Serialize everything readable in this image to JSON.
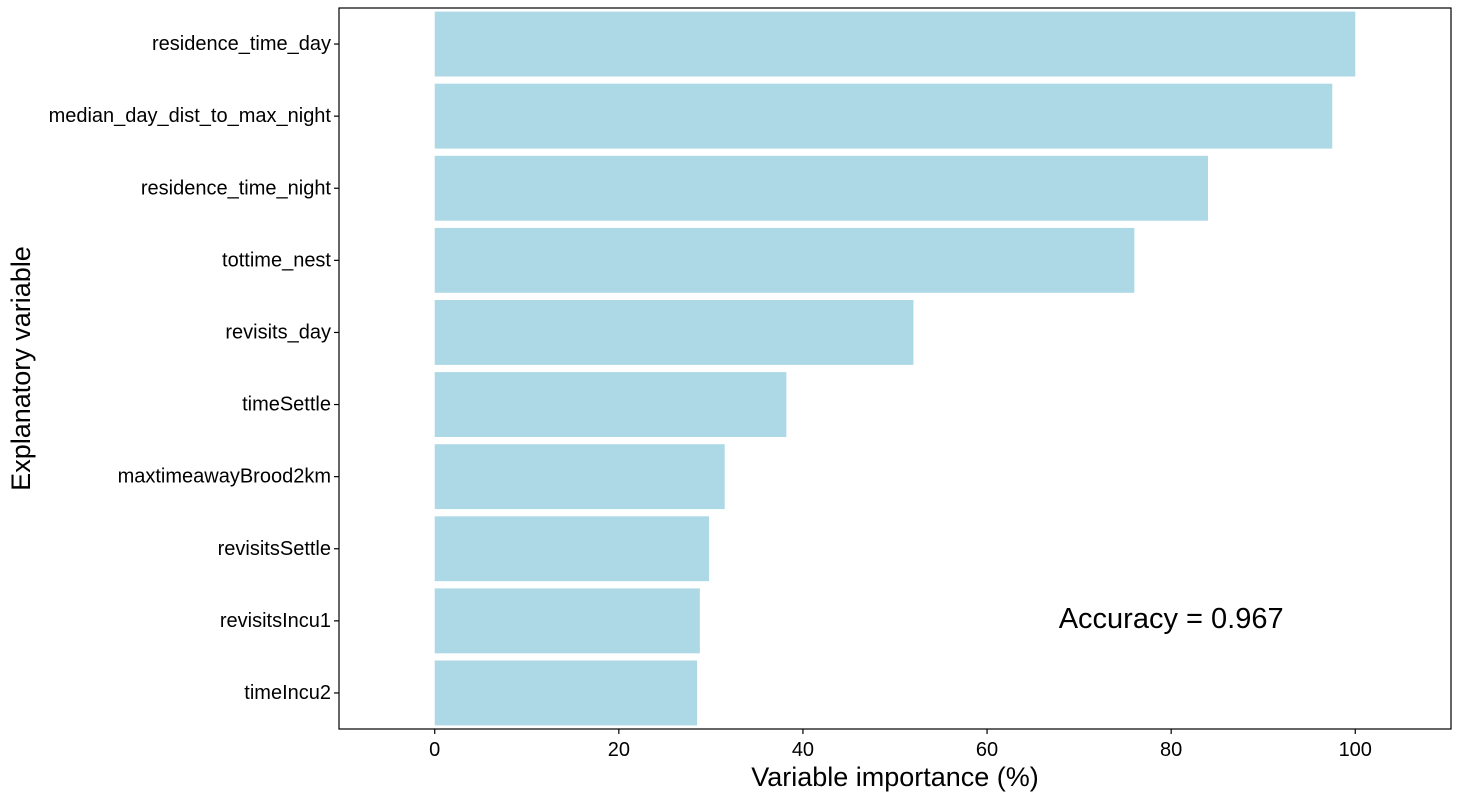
{
  "chart_data": {
    "type": "bar",
    "orientation": "horizontal",
    "title": "",
    "xlabel": "Variable importance (%)",
    "ylabel": "Explanatory variable",
    "xlim": [
      -10.4,
      110.4
    ],
    "xticks": [
      0,
      20,
      40,
      60,
      80,
      100
    ],
    "grid": false,
    "legend": "none",
    "bar_color": "#ADD8E6",
    "categories": [
      "residence_time_day",
      "median_day_dist_to_max_night",
      "residence_time_night",
      "tottime_nest",
      "revisits_day",
      "timeSettle",
      "maxtimeawayBrood2km",
      "revisitsSettle",
      "revisitsIncu1",
      "timeIncu2"
    ],
    "values": [
      100,
      97.5,
      84,
      76,
      52,
      38.2,
      31.5,
      29.8,
      28.8,
      28.5
    ],
    "annotation": "Accuracy =  0.967"
  }
}
